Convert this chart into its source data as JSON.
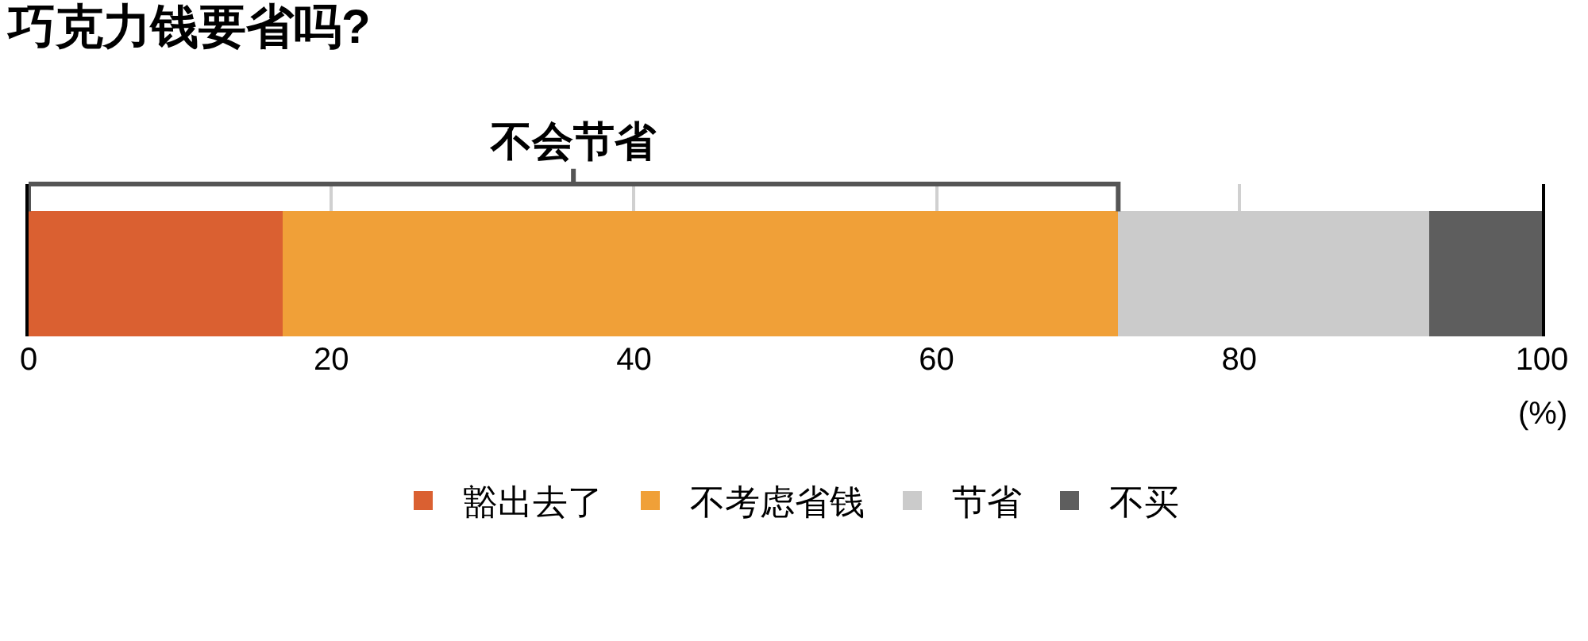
{
  "chart_data": {
    "type": "bar",
    "title": "巧克力钱要省吗?",
    "orientation": "horizontal",
    "stacked": true,
    "categories": [
      null
    ],
    "series": [
      {
        "name": "豁出去了",
        "color": "#da6031",
        "values": [
          16.8
        ]
      },
      {
        "name": "不考虑省钱",
        "color": "#f0a038",
        "values": [
          55.2
        ]
      },
      {
        "name": "节省",
        "color": "#cbcbcb",
        "values": [
          20.6
        ]
      },
      {
        "name": "不买",
        "color": "#5e5e5e",
        "values": [
          7.4
        ]
      }
    ],
    "xlim": [
      0,
      100
    ],
    "xticks": [
      0,
      20,
      40,
      60,
      80,
      100
    ],
    "xlabel": "(%)",
    "annotations": [
      "不会节省"
    ],
    "grid": "x",
    "legend": "bottom",
    "tick_labels": "x"
  }
}
